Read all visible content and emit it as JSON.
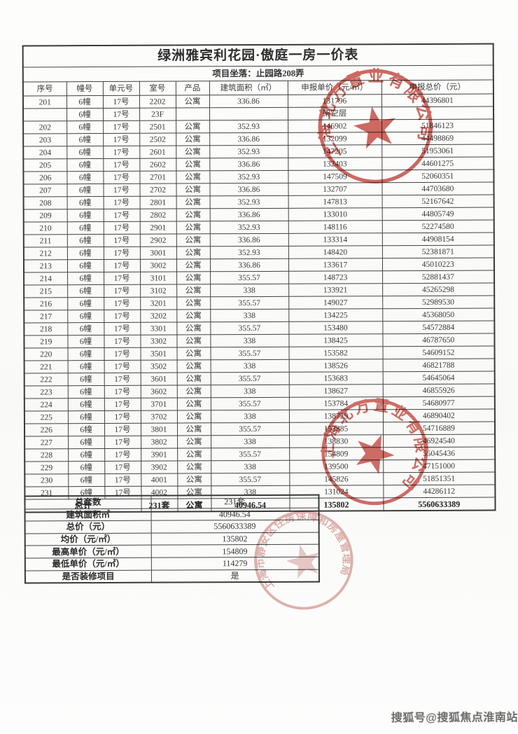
{
  "document": {
    "title": "绿洲雅宾利花园·傲庭一房一价表",
    "location": "项目坐落：止园路208弄"
  },
  "price_table": {
    "headers": [
      "序号",
      "幢号",
      "单元号",
      "室号",
      "产品",
      "建筑面积（㎡）",
      "申报单价（元/㎡）",
      "申报总价（元）"
    ],
    "rows": [
      [
        "201",
        "6幢",
        "17号",
        "2202",
        "公寓",
        "336.86",
        "131796",
        "44396801"
      ],
      [
        "",
        "6幢",
        "17号",
        "23F",
        "",
        "",
        "架空层",
        ""
      ],
      [
        "202",
        "6幢",
        "17号",
        "2501",
        "公寓",
        "352.93",
        "146902",
        "51846123"
      ],
      [
        "203",
        "6幢",
        "17号",
        "2502",
        "公寓",
        "336.86",
        "132099",
        "44498869"
      ],
      [
        "204",
        "6幢",
        "17号",
        "2601",
        "公寓",
        "352.93",
        "147205",
        "51953061"
      ],
      [
        "205",
        "6幢",
        "17号",
        "2602",
        "公寓",
        "336.86",
        "132403",
        "44601275"
      ],
      [
        "206",
        "6幢",
        "17号",
        "2701",
        "公寓",
        "352.93",
        "147509",
        "52060351"
      ],
      [
        "207",
        "6幢",
        "17号",
        "2702",
        "公寓",
        "336.86",
        "132707",
        "44703680"
      ],
      [
        "208",
        "6幢",
        "17号",
        "2801",
        "公寓",
        "352.93",
        "147813",
        "52167642"
      ],
      [
        "209",
        "6幢",
        "17号",
        "2802",
        "公寓",
        "336.86",
        "133010",
        "44805749"
      ],
      [
        "210",
        "6幢",
        "17号",
        "2901",
        "公寓",
        "352.93",
        "148116",
        "52274580"
      ],
      [
        "211",
        "6幢",
        "17号",
        "2902",
        "公寓",
        "336.86",
        "133314",
        "44908154"
      ],
      [
        "212",
        "6幢",
        "17号",
        "3001",
        "公寓",
        "352.93",
        "148420",
        "52381871"
      ],
      [
        "213",
        "6幢",
        "17号",
        "3002",
        "公寓",
        "336.86",
        "133617",
        "45010223"
      ],
      [
        "214",
        "6幢",
        "17号",
        "3101",
        "公寓",
        "355.57",
        "148723",
        "52881437"
      ],
      [
        "215",
        "6幢",
        "17号",
        "3102",
        "公寓",
        "338",
        "133921",
        "45265298"
      ],
      [
        "216",
        "6幢",
        "17号",
        "3201",
        "公寓",
        "355.57",
        "149027",
        "52989530"
      ],
      [
        "217",
        "6幢",
        "17号",
        "3202",
        "公寓",
        "338",
        "134225",
        "45368050"
      ],
      [
        "218",
        "6幢",
        "17号",
        "3301",
        "公寓",
        "355.57",
        "153480",
        "54572884"
      ],
      [
        "219",
        "6幢",
        "17号",
        "3302",
        "公寓",
        "338",
        "138425",
        "46787650"
      ],
      [
        "220",
        "6幢",
        "17号",
        "3501",
        "公寓",
        "355.57",
        "153582",
        "54609152"
      ],
      [
        "221",
        "6幢",
        "17号",
        "3502",
        "公寓",
        "338",
        "138526",
        "46821788"
      ],
      [
        "222",
        "6幢",
        "17号",
        "3601",
        "公寓",
        "355.57",
        "153683",
        "54645064"
      ],
      [
        "223",
        "6幢",
        "17号",
        "3602",
        "公寓",
        "338",
        "138627",
        "46855926"
      ],
      [
        "224",
        "6幢",
        "17号",
        "3701",
        "公寓",
        "355.57",
        "153784",
        "54680977"
      ],
      [
        "225",
        "6幢",
        "17号",
        "3702",
        "公寓",
        "338",
        "138729",
        "46890402"
      ],
      [
        "226",
        "6幢",
        "17号",
        "3801",
        "公寓",
        "355.57",
        "153885",
        "54716889"
      ],
      [
        "227",
        "6幢",
        "17号",
        "3802",
        "公寓",
        "338",
        "138830",
        "46924540"
      ],
      [
        "228",
        "6幢",
        "17号",
        "3901",
        "公寓",
        "355.57",
        "154809",
        "55045436"
      ],
      [
        "229",
        "6幢",
        "17号",
        "3902",
        "公寓",
        "338",
        "139500",
        "47151000"
      ],
      [
        "230",
        "6幢",
        "17号",
        "4001",
        "公寓",
        "355.57",
        "145826",
        "51851351"
      ],
      [
        "231",
        "6幢",
        "17号",
        "4002",
        "公寓",
        "338",
        "131024",
        "44286112"
      ]
    ],
    "total_row": {
      "label": "总计",
      "count": "231套",
      "product": "公寓",
      "area": "40946.54",
      "unit_price": "135802",
      "total_price": "5560633389"
    }
  },
  "summary_table": {
    "rows": [
      {
        "label": "总套数",
        "value": "231套"
      },
      {
        "label": "建筑面积㎡",
        "value": "40946.54"
      },
      {
        "label": "总价（元）",
        "value": "5560633389"
      },
      {
        "label": "均价（元/㎡）",
        "value": "135802"
      },
      {
        "label": "最高单价（元/㎡）",
        "value": "154809"
      },
      {
        "label": "最低单价（元/㎡）",
        "value": "114279"
      },
      {
        "label": "是否装修项目",
        "value": "是"
      }
    ]
  },
  "stamps": [
    {
      "text": "上海北万置业有限公司",
      "color": "#c0433a",
      "opacity": 0.8
    },
    {
      "text": "上海北万置业有限公司",
      "color": "#c0433a",
      "opacity": 0.78
    },
    {
      "text": "上海市静安区住房保障和房屋管理局",
      "color": "#c8817b",
      "opacity": 0.62
    }
  ],
  "watermark": {
    "text": "搜狐号@搜狐焦点淮南站"
  }
}
